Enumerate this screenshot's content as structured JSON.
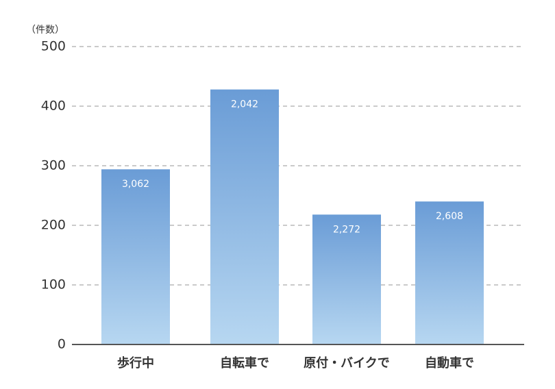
{
  "chart_data": {
    "type": "bar",
    "y_label": "（件数）",
    "categories": [
      "歩行中",
      "自転車で",
      "原付・バイクで",
      "自動車で"
    ],
    "values": [
      294,
      428,
      218,
      240
    ],
    "annotations": [
      "3,062",
      "2,042",
      "2,272",
      "2,608"
    ],
    "gradient": [
      "#6a9cd6",
      "#b7d7f1"
    ],
    "ylim": [
      0,
      500
    ],
    "yticks": [
      0,
      100,
      200,
      300,
      400,
      500
    ],
    "grid": true
  }
}
